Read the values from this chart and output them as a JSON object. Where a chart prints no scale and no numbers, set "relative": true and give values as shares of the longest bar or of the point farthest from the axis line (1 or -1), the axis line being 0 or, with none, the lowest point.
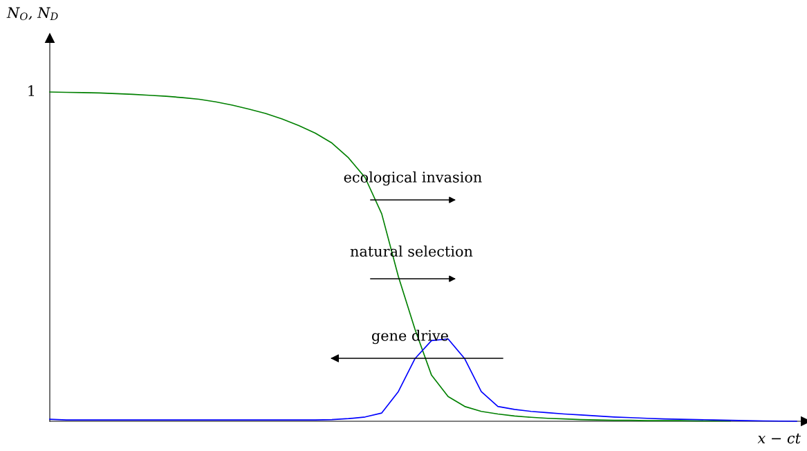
{
  "chart_data": {
    "type": "line",
    "relative": true,
    "xlabel": "x − ct",
    "ylabel": "N$_{O}$, N$_{D}$",
    "categories": [
      null,
      null,
      null,
      null,
      null,
      null,
      null,
      null,
      null,
      null,
      null,
      null,
      null,
      null,
      null,
      null,
      null,
      null,
      null,
      null,
      null,
      null,
      null,
      null,
      null,
      null,
      null,
      null,
      null,
      null,
      null,
      null,
      null,
      null,
      null,
      null,
      null,
      null,
      null,
      null,
      null,
      null,
      null,
      null,
      null,
      null
    ],
    "series": [
      {
        "color": "#008000",
        "values": [
          1.0,
          0.999,
          0.998,
          0.997,
          0.995,
          0.993,
          0.99,
          0.987,
          0.983,
          0.978,
          0.97,
          0.96,
          0.948,
          0.935,
          0.918,
          0.898,
          0.875,
          0.845,
          0.8,
          0.74,
          0.63,
          0.44,
          0.28,
          0.14,
          0.075,
          0.045,
          0.03,
          0.022,
          0.016,
          0.012,
          0.009,
          0.007,
          0.005,
          0.004,
          0.003,
          0.003,
          0.002,
          0.002,
          0.002,
          0.001,
          0.001,
          0.001,
          null,
          null,
          null,
          null
        ]
      },
      {
        "color": "#0000ff",
        "values": [
          0.006,
          0.004,
          0.004,
          0.004,
          0.004,
          0.004,
          0.004,
          0.004,
          0.004,
          0.004,
          0.004,
          0.004,
          0.004,
          0.004,
          0.004,
          0.004,
          0.004,
          0.005,
          0.008,
          0.013,
          0.025,
          0.09,
          0.19,
          0.245,
          0.25,
          0.19,
          0.09,
          0.045,
          0.036,
          0.03,
          0.026,
          0.022,
          0.019,
          0.016,
          0.013,
          0.011,
          0.009,
          0.007,
          0.006,
          0.005,
          0.004,
          0.003,
          0.002,
          0.001,
          0.0005,
          0
        ]
      }
    ],
    "annotations": [
      "1",
      "ecological invasion",
      "natural selection",
      "gene drive"
    ],
    "grid": false,
    "legend": false,
    "marker": "none",
    "line_style": "solid"
  }
}
